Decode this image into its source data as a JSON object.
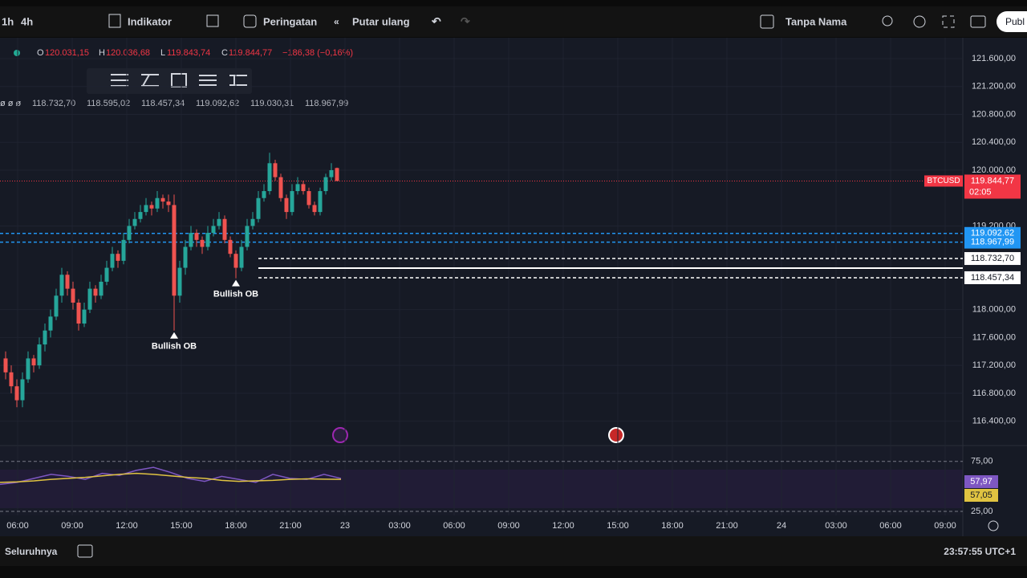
{
  "toolbar": {
    "intervals": [
      "1h",
      "4h"
    ],
    "indicators": "Indikator",
    "alerts": "Peringatan",
    "replay": "Putar ulang",
    "layout_name": "Tanpa Nama",
    "publish": "Publ"
  },
  "legend": {
    "o_key": "O",
    "o": "120.031,15",
    "h_key": "H",
    "h": "120.036,68",
    "l_key": "L",
    "l": "119.843,74",
    "c_key": "C",
    "c": "119.844,77",
    "change": "−186,38 (−0,16%)"
  },
  "indicator_row": {
    "prefix": "ø ø ø",
    "values": [
      "118.732,70",
      "118.595,02",
      "118.457,34",
      "119.092,62",
      "119.030,31",
      "118.967,99"
    ]
  },
  "chart_data": {
    "type": "candlestick",
    "candles": [
      [
        117300,
        117400,
        117000,
        117100
      ],
      [
        117100,
        117200,
        116800,
        116900
      ],
      [
        116900,
        117000,
        116600,
        116700
      ],
      [
        116700,
        117100,
        116600,
        117000
      ],
      [
        117000,
        117400,
        116950,
        117300
      ],
      [
        117300,
        117350,
        117100,
        117200
      ],
      [
        117200,
        117600,
        117150,
        117500
      ],
      [
        117500,
        117800,
        117400,
        117700
      ],
      [
        117700,
        118000,
        117600,
        117900
      ],
      [
        117900,
        118300,
        117850,
        118200
      ],
      [
        118200,
        118600,
        118100,
        118500
      ],
      [
        118500,
        118550,
        118200,
        118300
      ],
      [
        118300,
        118400,
        118000,
        118100
      ],
      [
        118100,
        118150,
        117700,
        117800
      ],
      [
        117800,
        118100,
        117750,
        118000
      ],
      [
        118000,
        118400,
        117950,
        118300
      ],
      [
        118300,
        118350,
        118100,
        118200
      ],
      [
        118200,
        118500,
        118150,
        118400
      ],
      [
        118400,
        118700,
        118350,
        118600
      ],
      [
        118600,
        118900,
        118550,
        118800
      ],
      [
        118800,
        118850,
        118600,
        118700
      ],
      [
        118700,
        119100,
        118650,
        119000
      ],
      [
        119000,
        119300,
        118950,
        119200
      ],
      [
        119200,
        119400,
        119150,
        119300
      ],
      [
        119300,
        119500,
        119250,
        119400
      ],
      [
        119400,
        119600,
        119350,
        119500
      ],
      [
        119500,
        119550,
        119350,
        119450
      ],
      [
        119450,
        119700,
        119400,
        119600
      ],
      [
        119600,
        119650,
        119450,
        119550
      ],
      [
        119550,
        119650,
        119400,
        119500
      ],
      [
        119500,
        119650,
        117700,
        118200
      ],
      [
        118200,
        118700,
        118100,
        118600
      ],
      [
        118600,
        119000,
        118500,
        118900
      ],
      [
        118900,
        119200,
        118850,
        119100
      ],
      [
        119100,
        119150,
        118900,
        119000
      ],
      [
        119000,
        119050,
        118800,
        118900
      ],
      [
        118900,
        119200,
        118850,
        119100
      ],
      [
        119100,
        119300,
        119050,
        119200
      ],
      [
        119200,
        119400,
        119150,
        119300
      ],
      [
        119300,
        119350,
        118950,
        119000
      ],
      [
        119000,
        119050,
        118750,
        118800
      ],
      [
        118800,
        118850,
        118450,
        118600
      ],
      [
        118600,
        119000,
        118550,
        118900
      ],
      [
        118900,
        119300,
        118850,
        119200
      ],
      [
        119200,
        119400,
        119150,
        119300
      ],
      [
        119300,
        119700,
        119250,
        119600
      ],
      [
        119600,
        119800,
        119550,
        119700
      ],
      [
        119700,
        120250,
        119650,
        120100
      ],
      [
        120100,
        120150,
        119850,
        119900
      ],
      [
        119900,
        119950,
        119550,
        119600
      ],
      [
        119600,
        119650,
        119300,
        119400
      ],
      [
        119400,
        119800,
        119350,
        119700
      ],
      [
        119700,
        119900,
        119650,
        119800
      ],
      [
        119800,
        119850,
        119650,
        119700
      ],
      [
        119700,
        119750,
        119450,
        119500
      ],
      [
        119500,
        119550,
        119350,
        119400
      ],
      [
        119400,
        119750,
        119350,
        119700
      ],
      [
        119700,
        119950,
        119650,
        119900
      ],
      [
        119900,
        120100,
        119850,
        120000
      ],
      [
        120031.15,
        120036.68,
        119843.74,
        119844.77
      ]
    ],
    "up_color": "#26a69a",
    "down_color": "#ef5350",
    "ylim": [
      116050,
      121900
    ],
    "yticks": [
      {
        "value": 121600,
        "label": "121.600,00"
      },
      {
        "value": 121200,
        "label": "121.200,00"
      },
      {
        "value": 120800,
        "label": "120.800,00"
      },
      {
        "value": 120400,
        "label": "120.400,00"
      },
      {
        "value": 120000,
        "label": "120.000,00"
      },
      {
        "value": 119200,
        "label": "119.200,00"
      },
      {
        "value": 118000,
        "label": "118.000,00"
      },
      {
        "value": 117600,
        "label": "117.600,00"
      },
      {
        "value": 117200,
        "label": "117.200,00"
      },
      {
        "value": 116800,
        "label": "116.800,00"
      },
      {
        "value": 116400,
        "label": "116.400,00"
      }
    ],
    "time_labels": [
      "06:00",
      "09:00",
      "12:00",
      "15:00",
      "18:00",
      "21:00",
      "23",
      "03:00",
      "06:00",
      "09:00",
      "12:00",
      "15:00",
      "18:00",
      "21:00",
      "24",
      "03:00",
      "06:00",
      "09:00"
    ],
    "price_tag": {
      "symbol": "BTCUSD",
      "value": 119844.77,
      "label": "119.844,77",
      "countdown": "02:05",
      "color": "#f23645"
    },
    "levels": [
      {
        "value": 119092.62,
        "label": "119.092,62",
        "color": "#2196f3",
        "style": "dashed"
      },
      {
        "value": 118967.99,
        "label": "118.967,99",
        "color": "#2196f3",
        "style": "dashed"
      },
      {
        "value": 118732.7,
        "label": "118.732,70",
        "color": "#ffffff",
        "style": "dashed"
      },
      {
        "value": 118595.02,
        "color": "#ffffff",
        "style": "solid"
      },
      {
        "value": 118457.34,
        "label": "118.457,34",
        "color": "#ffffff",
        "style": "dashed"
      }
    ],
    "annotations": [
      {
        "text": "Bullish OB",
        "candle": 30
      },
      {
        "text": "Bullish OB",
        "candle": 41
      }
    ]
  },
  "rsi": {
    "ylim": [
      21,
      90
    ],
    "yticks": [
      {
        "value": 75,
        "label": "75,00"
      },
      {
        "value": 25,
        "label": "25,00"
      }
    ],
    "rsi": {
      "color": "#7e57c2",
      "values": [
        52,
        54,
        58,
        62,
        60,
        57,
        63,
        61,
        66,
        69,
        64,
        58,
        55,
        60,
        57,
        54,
        62,
        58,
        57,
        62,
        57.97
      ],
      "last": {
        "value": 57.97,
        "label": "57,97"
      }
    },
    "ma": {
      "color": "#e0c341",
      "values": [
        54,
        54.5,
        55.5,
        57,
        58,
        59,
        60.5,
        62,
        63,
        62,
        60.5,
        59,
        58,
        56,
        55,
        55.5,
        56,
        57,
        57.5,
        57.2,
        57.05
      ],
      "last": {
        "value": 57.05,
        "label": "57,05"
      }
    }
  },
  "bottom": {
    "range": "Seluruhnya",
    "clock": "23:57:55 UTC+1"
  }
}
